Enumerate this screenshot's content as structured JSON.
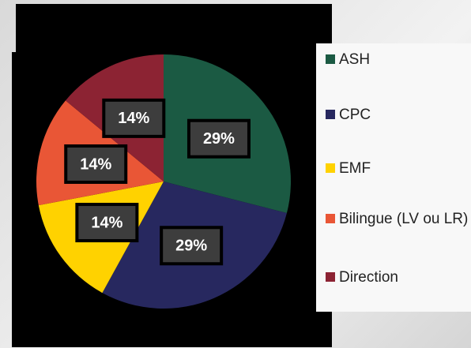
{
  "chart_data": {
    "type": "pie",
    "categories": [
      "ASH",
      "CPC",
      "EMF",
      "Bilingue (LV ou LR)",
      "Direction"
    ],
    "values": [
      29,
      29,
      14,
      14,
      14
    ],
    "value_labels": [
      "29%",
      "29%",
      "14%",
      "14%",
      "14%"
    ],
    "colors": [
      "#1b5a43",
      "#27285f",
      "#ffd200",
      "#e95636",
      "#8c2333"
    ],
    "legend": "right"
  }
}
